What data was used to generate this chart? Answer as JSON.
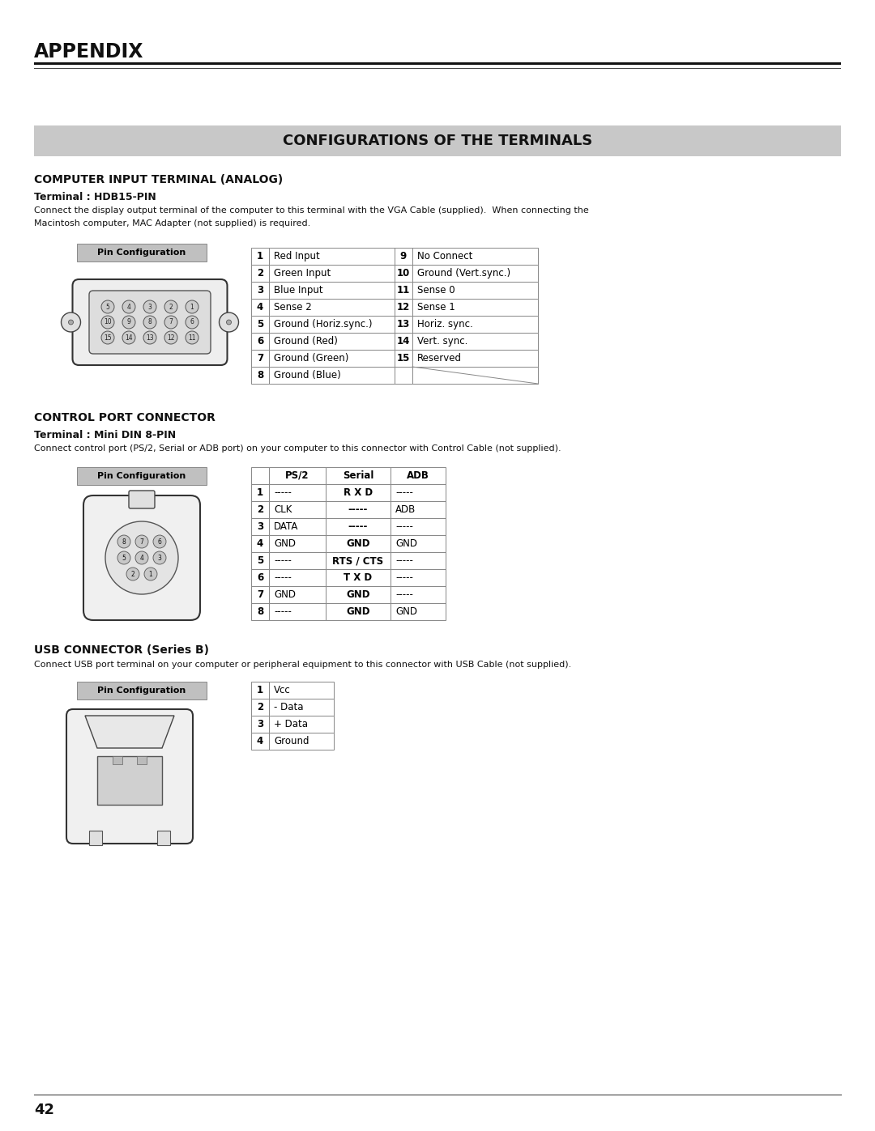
{
  "page_title": "APPENDIX",
  "section_title": "CONFIGURATIONS OF THE TERMINALS",
  "page_number": "42",
  "bg_color": "#ffffff",
  "section_bg": "#cccccc",
  "section1_title": "COMPUTER INPUT TERMINAL (ANALOG)",
  "section1_sub": "Terminal : HDB15-PIN",
  "section1_desc1": "Connect the display output terminal of the computer to this terminal with the VGA Cable (supplied).  When connecting the",
  "section1_desc2": "Macintosh computer, MAC Adapter (not supplied) is required.",
  "vga_table": {
    "rows": [
      [
        "1",
        "Red Input",
        "9",
        "No Connect"
      ],
      [
        "2",
        "Green Input",
        "10",
        "Ground (Vert.sync.)"
      ],
      [
        "3",
        "Blue Input",
        "11",
        "Sense 0"
      ],
      [
        "4",
        "Sense 2",
        "12",
        "Sense 1"
      ],
      [
        "5",
        "Ground (Horiz.sync.)",
        "13",
        "Horiz. sync."
      ],
      [
        "6",
        "Ground (Red)",
        "14",
        "Vert. sync."
      ],
      [
        "7",
        "Ground (Green)",
        "15",
        "Reserved"
      ],
      [
        "8",
        "Ground (Blue)",
        "",
        ""
      ]
    ]
  },
  "section2_title": "CONTROL PORT CONNECTOR",
  "section2_sub": "Terminal : Mini DIN 8-PIN",
  "section2_desc": "Connect control port (PS/2, Serial or ADB port) on your computer to this connector with Control Cable (not supplied).",
  "din_table": {
    "headers": [
      "",
      "PS/2",
      "Serial",
      "ADB"
    ],
    "rows": [
      [
        "1",
        "-----",
        "R X D",
        "-----"
      ],
      [
        "2",
        "CLK",
        "-----",
        "ADB"
      ],
      [
        "3",
        "DATA",
        "-----",
        "-----"
      ],
      [
        "4",
        "GND",
        "GND",
        "GND"
      ],
      [
        "5",
        "-----",
        "RTS / CTS",
        "-----"
      ],
      [
        "6",
        "-----",
        "T X D",
        "-----"
      ],
      [
        "7",
        "GND",
        "GND",
        "-----"
      ],
      [
        "8",
        "-----",
        "GND",
        "GND"
      ]
    ]
  },
  "section3_title": "USB CONNECTOR (Series B)",
  "section3_desc": "Connect USB port terminal on your computer or peripheral equipment to this connector with USB Cable (not supplied).",
  "usb_table": {
    "rows": [
      [
        "1",
        "Vcc"
      ],
      [
        "2",
        "- Data"
      ],
      [
        "3",
        "+ Data"
      ],
      [
        "4",
        "Ground"
      ]
    ]
  }
}
